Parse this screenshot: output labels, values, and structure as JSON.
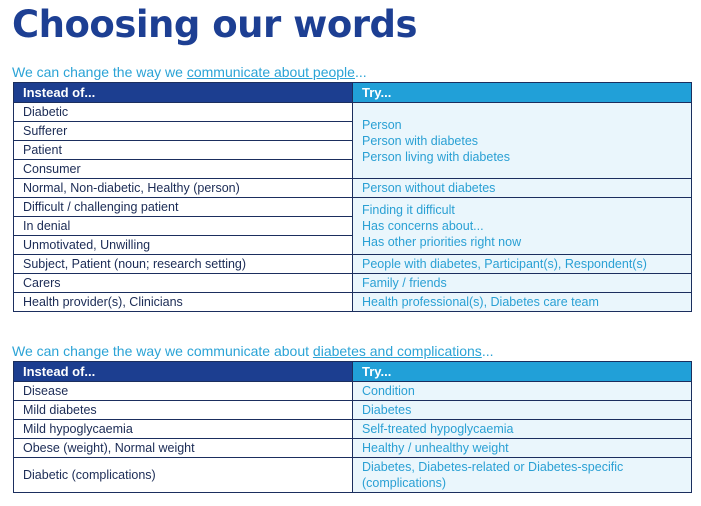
{
  "title": "Choosing our words",
  "section1": {
    "subtitle_pre": "We can change the way we ",
    "subtitle_link": "communicate about people",
    "subtitle_post": "...",
    "header_instead": "Instead of...",
    "header_try": "Try...",
    "rows": [
      {
        "instead": "Diabetic"
      },
      {
        "instead": "Sufferer"
      },
      {
        "instead": "Patient"
      },
      {
        "instead": "Consumer"
      },
      {
        "instead": "Normal, Non-diabetic, Healthy (person)"
      },
      {
        "instead": "Difficult / challenging patient"
      },
      {
        "instead": "In denial"
      },
      {
        "instead": "Unmotivated, Unwilling"
      },
      {
        "instead": "Subject, Patient (noun; research setting)"
      },
      {
        "instead": "Carers"
      },
      {
        "instead": "Health provider(s), Clinicians"
      }
    ],
    "tries": [
      [
        "Person",
        "Person with diabetes",
        "Person living with diabetes"
      ],
      [
        "Person without diabetes"
      ],
      [
        "Finding it difficult",
        "Has concerns about...",
        "Has other priorities right now"
      ],
      [
        "People with diabetes, Participant(s), Respondent(s)"
      ],
      [
        "Family / friends"
      ],
      [
        "Health professional(s), Diabetes care team"
      ]
    ]
  },
  "section2": {
    "subtitle_pre": "We can change the way we communicate about ",
    "subtitle_link": "diabetes and complications",
    "subtitle_post": "...",
    "header_instead": "Instead of...",
    "header_try": "Try...",
    "rows": [
      {
        "instead": "Disease",
        "try": [
          "Condition"
        ]
      },
      {
        "instead": "Mild diabetes",
        "try": [
          "Diabetes"
        ]
      },
      {
        "instead": "Mild hypoglycaemia",
        "try": [
          "Self-treated hypoglycaemia"
        ]
      },
      {
        "instead": "Obese (weight), Normal weight",
        "try": [
          "Healthy / unhealthy weight"
        ]
      },
      {
        "instead": "Diabetic (complications)",
        "try": [
          "Diabetes, Diabetes-related or Diabetes-specific",
          "(complications)"
        ]
      }
    ]
  }
}
